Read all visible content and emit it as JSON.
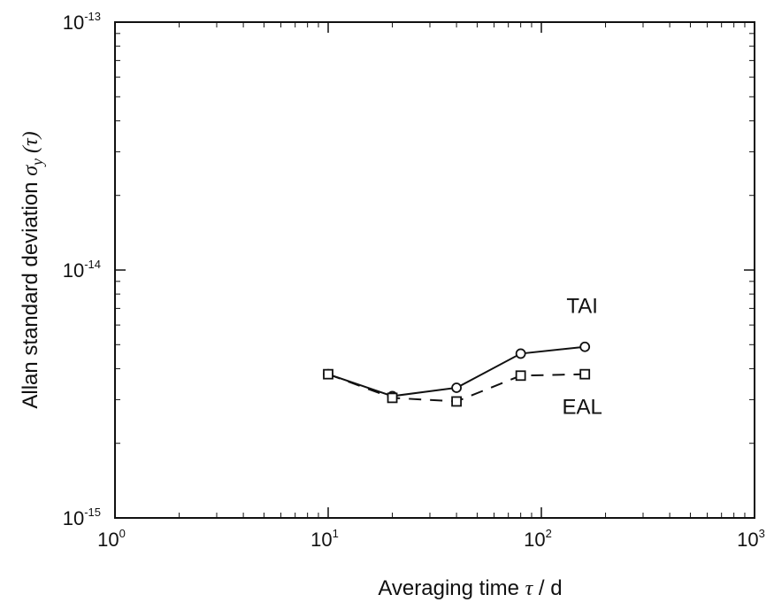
{
  "chart_data": {
    "type": "line",
    "x_scale": "log",
    "y_scale": "log",
    "xlim": [
      1,
      1000
    ],
    "ylim": [
      1e-15,
      1e-13
    ],
    "x_ticks": [
      {
        "value": 1,
        "base": "10",
        "exp": "0"
      },
      {
        "value": 10,
        "base": "10",
        "exp": "1"
      },
      {
        "value": 100,
        "base": "10",
        "exp": "2"
      },
      {
        "value": 1000,
        "base": "10",
        "exp": "3"
      }
    ],
    "y_ticks": [
      {
        "value": 1e-15,
        "base": "10",
        "exp": "-15"
      },
      {
        "value": 1e-14,
        "base": "10",
        "exp": "-14"
      },
      {
        "value": 1e-13,
        "base": "10",
        "exp": "-13"
      }
    ],
    "xlabel": {
      "text": "Averaging time",
      "symbol": "τ",
      "unit": " / d"
    },
    "ylabel": {
      "text": "Allan standard deviation",
      "symbol": "σ",
      "sub": "y",
      "arg": "(τ)"
    },
    "grid": false,
    "series": [
      {
        "name": "TAI",
        "line": "solid",
        "marker": "circle",
        "color": "#111111",
        "x": [
          10,
          20,
          40,
          80,
          160
        ],
        "y": [
          3.8e-15,
          3.1e-15,
          3.35e-15,
          4.6e-15,
          4.9e-15
        ]
      },
      {
        "name": "EAL",
        "line": "dashed",
        "marker": "square",
        "color": "#111111",
        "x": [
          10,
          20,
          40,
          80,
          160
        ],
        "y": [
          3.8e-15,
          3.05e-15,
          2.95e-15,
          3.75e-15,
          3.8e-15
        ]
      }
    ]
  }
}
